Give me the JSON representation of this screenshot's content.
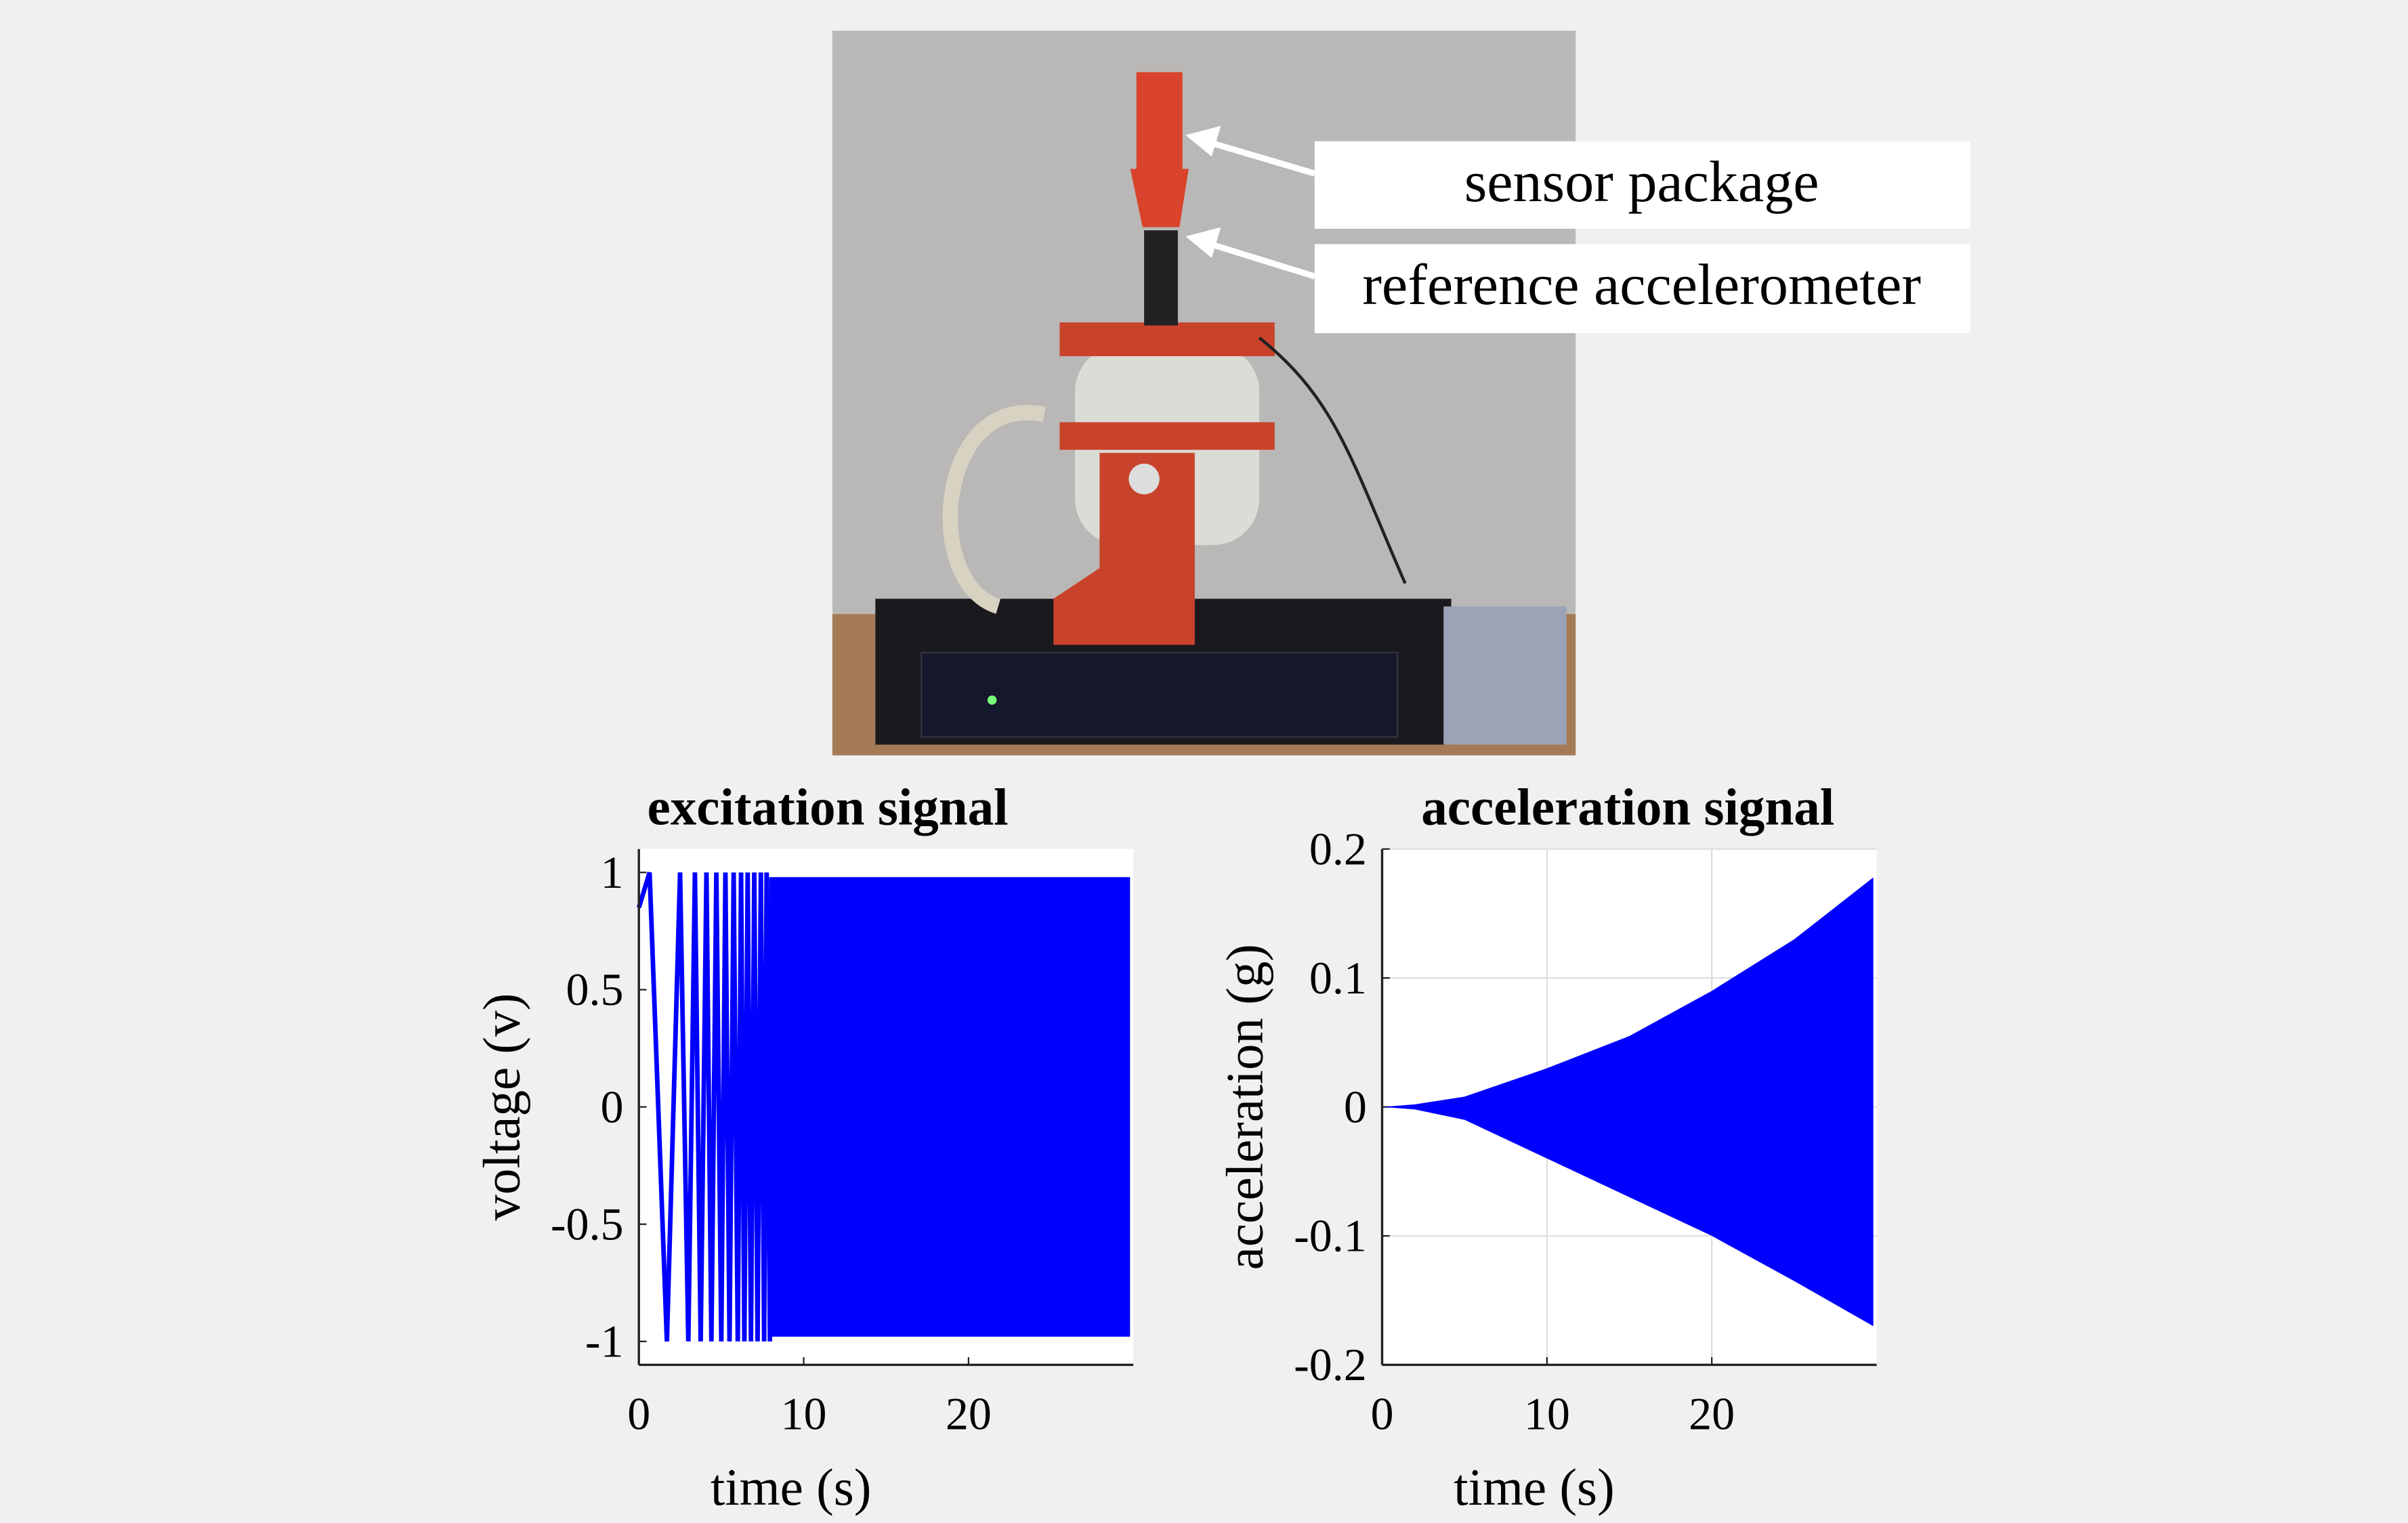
{
  "photo": {
    "labels": [
      "sensor package",
      "reference accelerometer"
    ]
  },
  "chart_data": [
    {
      "type": "line",
      "title": "excitation signal",
      "xlabel": "time (s)",
      "ylabel": "voltage (v)",
      "color": "#0000ff",
      "x": [
        0,
        0.65,
        1.7,
        2.5,
        3.0,
        3.4,
        3.75,
        4.1,
        4.4,
        4.7,
        5.0,
        5.25,
        5.5,
        5.75,
        6.0,
        6.2,
        6.4,
        6.6,
        6.8,
        7.0,
        7.2,
        7.4,
        7.6,
        7.75,
        7.95
      ],
      "values": [
        0.85,
        1,
        -1,
        1,
        -1,
        1,
        -1,
        1,
        -1,
        1,
        -1,
        1,
        -1,
        1,
        -1,
        1,
        -1,
        1,
        -1,
        1,
        -1,
        1,
        -1,
        1,
        -1
      ],
      "band": {
        "x": [
          7.9,
          29.8
        ],
        "upper": [
          0.98,
          0.98
        ],
        "lower": [
          -0.98,
          -0.98
        ]
      },
      "xlim": [
        0,
        30
      ],
      "ylim": [
        -1.1,
        1.1
      ],
      "xticks": [
        0,
        10,
        20
      ],
      "yticks": [
        -1,
        -0.5,
        0,
        0.5,
        1
      ],
      "grid": false
    },
    {
      "type": "band",
      "title": "acceleration signal",
      "xlabel": "time (s)",
      "ylabel": "acceleration (g)",
      "color": "#0000ff",
      "band": {
        "x": [
          0,
          2,
          5,
          10,
          15,
          20,
          25,
          29.8
        ],
        "upper": [
          0,
          0.002,
          0.008,
          0.03,
          0.055,
          0.09,
          0.13,
          0.178
        ],
        "lower": [
          0,
          -0.002,
          -0.01,
          -0.04,
          -0.07,
          -0.1,
          -0.135,
          -0.17
        ]
      },
      "xlim": [
        0,
        30
      ],
      "ylim": [
        -0.2,
        0.2
      ],
      "xticks": [
        0,
        10,
        20
      ],
      "yticks": [
        -0.2,
        -0.1,
        0,
        0.1,
        0.2
      ],
      "grid": true
    }
  ]
}
